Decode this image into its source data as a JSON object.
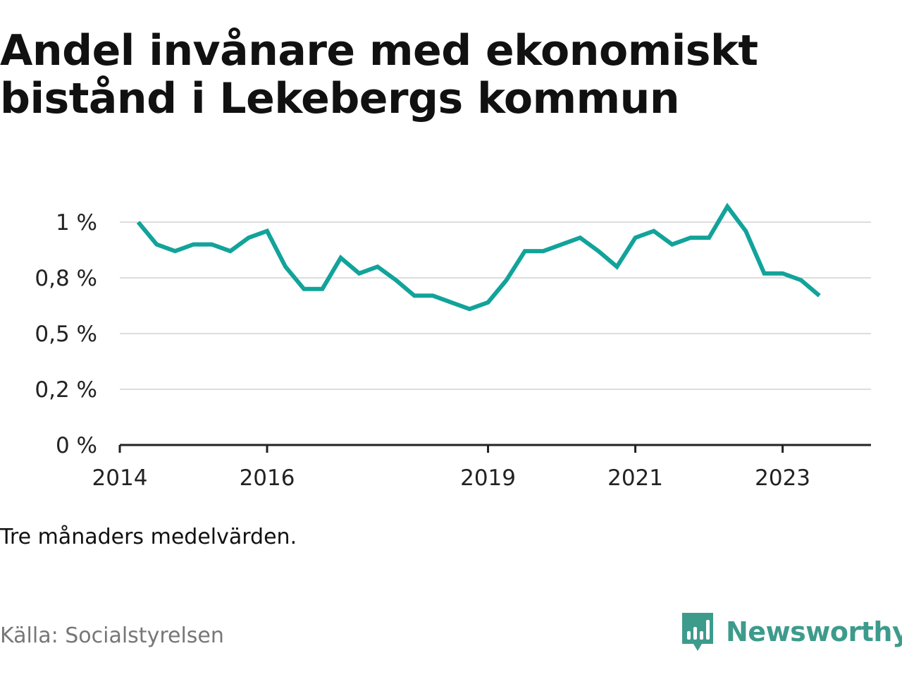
{
  "title": "Andel invånare med ekonomiskt bistånd i Lekebergs kommun",
  "note": "Tre månaders medelvärden.",
  "source": "Källa: Socialstyrelsen",
  "brand": {
    "name": "Newsworthy",
    "icon": "newsworthy-logo-icon",
    "color": "#3d9b8c"
  },
  "chart_data": {
    "type": "line",
    "title": "Andel invånare med ekonomiskt bistånd i Lekebergs kommun",
    "xlabel": "",
    "ylabel": "",
    "x_ticks": [
      "2014",
      "2016",
      "2019",
      "2021",
      "2023"
    ],
    "y_ticks": [
      "1 %",
      "0,8 %",
      "0,5 %",
      "0,2 %",
      "0 %"
    ],
    "y_tick_values": [
      1.0,
      0.75,
      0.5,
      0.25,
      0.0
    ],
    "ylim": [
      0,
      1.0
    ],
    "xlim": [
      2014.0,
      2024.2
    ],
    "grid": true,
    "line_color": "#12a39a",
    "series": [
      {
        "x": [
          2014.25,
          2014.5,
          2014.75,
          2015.0,
          2015.25,
          2015.5,
          2015.75,
          2016.0,
          2016.25,
          2016.5,
          2016.75,
          2017.0,
          2017.25,
          2017.5,
          2017.75,
          2018.0,
          2018.25,
          2018.5,
          2018.75,
          2019.0,
          2019.25,
          2019.5,
          2019.75,
          2020.0,
          2020.25,
          2020.5,
          2020.75,
          2021.0,
          2021.25,
          2021.5,
          2021.75,
          2022.0,
          2022.25,
          2022.5,
          2022.75,
          2023.0,
          2023.25,
          2023.5
        ],
        "values": [
          1.0,
          0.9,
          0.87,
          0.9,
          0.9,
          0.87,
          0.93,
          0.96,
          0.8,
          0.7,
          0.7,
          0.84,
          0.77,
          0.8,
          0.74,
          0.67,
          0.67,
          0.64,
          0.61,
          0.64,
          0.74,
          0.87,
          0.87,
          0.9,
          0.93,
          0.87,
          0.8,
          0.93,
          0.96,
          0.9,
          0.93,
          0.93,
          1.07,
          0.96,
          0.77,
          0.77,
          0.74,
          0.67
        ]
      }
    ]
  }
}
